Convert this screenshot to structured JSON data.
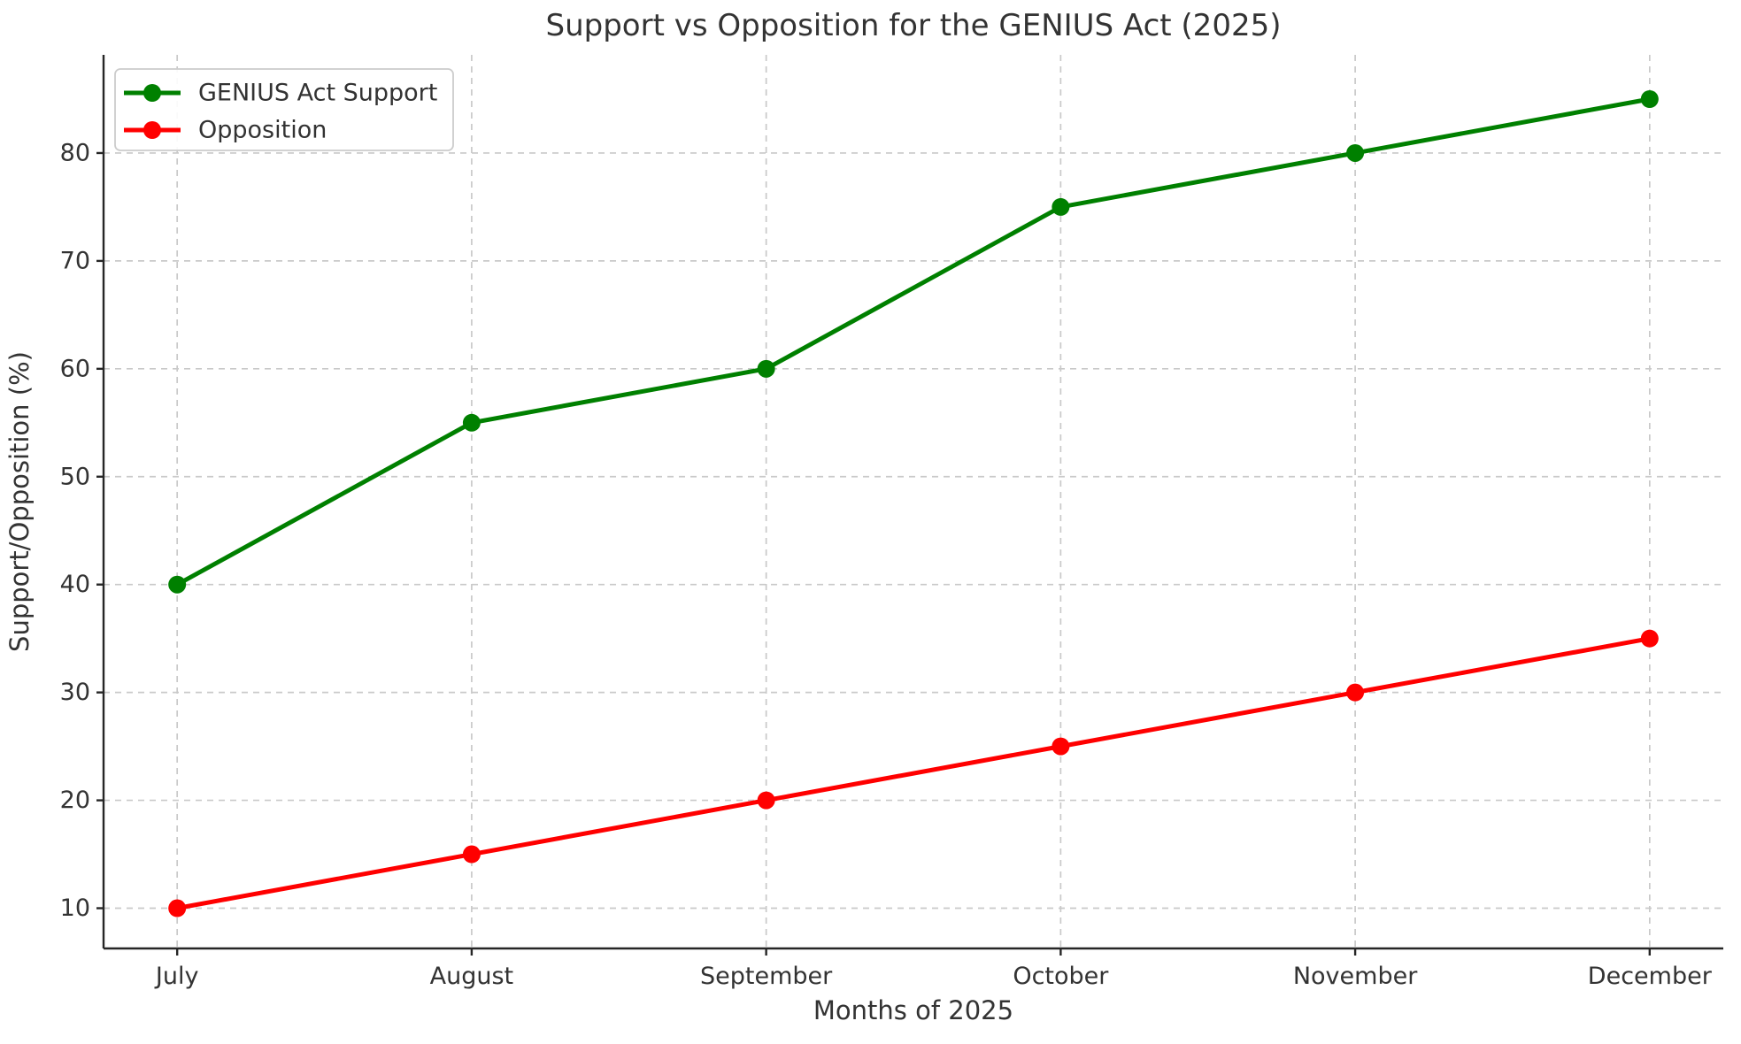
{
  "chart_data": {
    "type": "line",
    "title": "Support vs Opposition for the GENIUS Act (2025)",
    "xlabel": "Months of 2025",
    "ylabel": "Support/Opposition (%)",
    "categories": [
      "July",
      "August",
      "September",
      "October",
      "November",
      "December"
    ],
    "series": [
      {
        "name": "GENIUS Act Support",
        "values": [
          40,
          55,
          60,
          75,
          80,
          85
        ],
        "color": "#008000"
      },
      {
        "name": "Opposition",
        "values": [
          10,
          15,
          20,
          25,
          30,
          35
        ],
        "color": "#ff0000"
      }
    ],
    "yticks": [
      10,
      20,
      30,
      40,
      50,
      60,
      70,
      80
    ],
    "ylim": [
      6.27,
      89.1
    ],
    "grid": true,
    "legend_position": "upper left"
  },
  "colors": {
    "grid": "#c9c9c9",
    "spine": "#262626",
    "text": "#333333",
    "legend_border": "#cccccc",
    "background": "#ffffff"
  }
}
